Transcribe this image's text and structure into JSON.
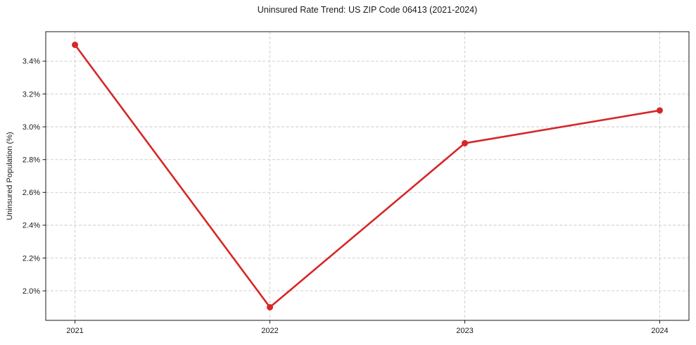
{
  "chart_data": {
    "type": "line",
    "title": "Uninsured Rate Trend: US ZIP Code 06413 (2021-2024)",
    "xlabel": "",
    "ylabel": "Uninsured Population (%)",
    "x": [
      2021,
      2022,
      2023,
      2024
    ],
    "x_tick_labels": [
      "2021",
      "2022",
      "2023",
      "2024"
    ],
    "values": [
      3.5,
      1.9,
      2.9,
      3.1
    ],
    "yticks": [
      2.0,
      2.2,
      2.4,
      2.6,
      2.8,
      3.0,
      3.2,
      3.4
    ],
    "ytick_labels": [
      "2.0%",
      "2.2%",
      "2.4%",
      "2.6%",
      "2.8%",
      "3.0%",
      "3.2%",
      "3.4%"
    ],
    "xlim": [
      2020.85,
      2024.15
    ],
    "ylim": [
      1.82,
      3.58
    ],
    "grid": true,
    "grid_style": "dashed",
    "legend": "none",
    "line_color": "#d62728",
    "marker": "circle",
    "grid_color": "#c9c9c9",
    "frame_color": "#1a1a1a"
  }
}
